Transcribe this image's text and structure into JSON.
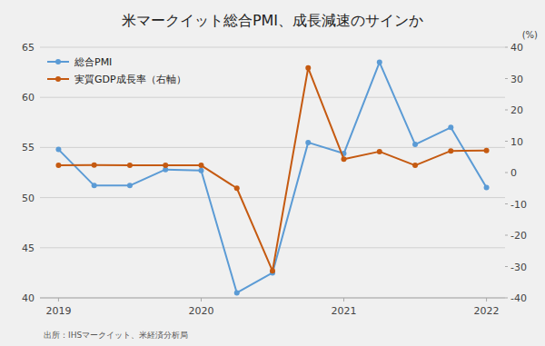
{
  "chart_data": {
    "type": "line",
    "title": "米マークイット総合PMI、成長減速のサインか",
    "source": "出所：IHSマークイット、米経済分析局",
    "y2label": "(%)",
    "x": [
      2019.0,
      2019.25,
      2019.5,
      2019.75,
      2020.0,
      2020.25,
      2020.5,
      2020.75,
      2021.0,
      2021.25,
      2021.5,
      2021.75,
      2022.0
    ],
    "xlim": [
      2018.87,
      2022.13
    ],
    "xticks": [
      2019,
      2020,
      2021,
      2022
    ],
    "ylim": [
      40,
      65
    ],
    "yticks": [
      40,
      45,
      50,
      55,
      60,
      65
    ],
    "y2lim": [
      -40,
      40
    ],
    "y2ticks": [
      -40,
      -30,
      -20,
      -10,
      0,
      10,
      20,
      30,
      40
    ],
    "grid": true,
    "legend": "upper left",
    "marker": "circle",
    "series": [
      {
        "name": "総合PMI",
        "color": "#5b9bd5",
        "values": [
          54.8,
          51.2,
          51.2,
          52.8,
          52.7,
          40.5,
          42.5,
          55.5,
          54.4,
          63.5,
          55.3,
          57.0,
          51.0
        ]
      },
      {
        "name": "実質GDP成長率（右軸）",
        "color": "#c55a11",
        "axis": "y2",
        "values": [
          2.3,
          2.4,
          2.3,
          2.3,
          2.3,
          -5.0,
          -31.4,
          33.4,
          4.3,
          6.7,
          2.3,
          6.9,
          7.0
        ]
      }
    ]
  }
}
